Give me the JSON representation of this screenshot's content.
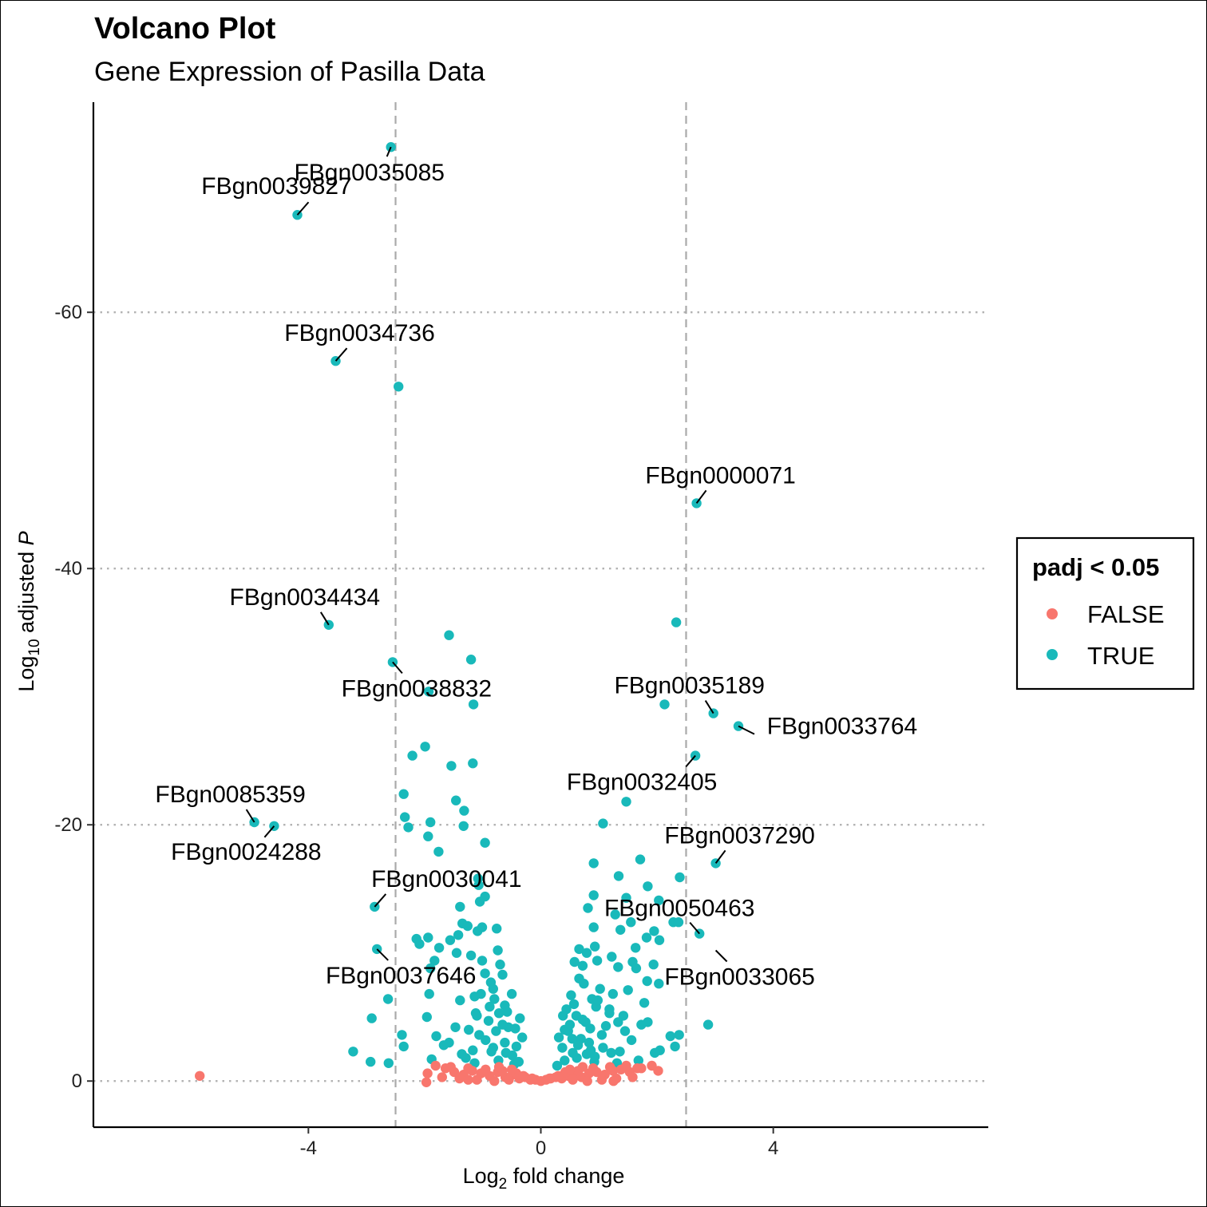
{
  "chart_data": {
    "type": "scatter",
    "title": "Volcano Plot",
    "subtitle": "Gene Expression of Pasilla Data",
    "xlabel": {
      "main": "Log",
      "sub": "2",
      "rest": " fold change"
    },
    "ylabel": {
      "main": "Log",
      "sub": "10",
      "rest": " adjusted ",
      "italic": "P"
    },
    "xlim": [
      -7.7,
      7.7
    ],
    "ylim": [
      3.6,
      -76.4
    ],
    "x_ticks": [
      -4,
      0,
      4
    ],
    "y_ticks": [
      0,
      -20,
      -40,
      -60
    ],
    "x_tick_labels": [
      "-4",
      "0",
      "4"
    ],
    "y_tick_labels": [
      "0",
      "-20",
      "-40",
      "-60"
    ],
    "vlines": [
      -2.5,
      2.5
    ],
    "legend": {
      "title": "padj < 0.05",
      "position": "right",
      "entries": [
        {
          "label": "FALSE",
          "color": "#F8766D"
        },
        {
          "label": "TRUE",
          "color": "#19B9BA"
        }
      ]
    },
    "series": [
      {
        "name": "TRUE",
        "color": "#19B9BA",
        "points": [
          [
            -2.58,
            -72.9
          ],
          [
            -4.19,
            -67.6
          ],
          [
            -3.53,
            -56.2
          ],
          [
            -2.45,
            -54.2
          ],
          [
            2.68,
            -45.1
          ],
          [
            2.33,
            -35.8
          ],
          [
            -3.65,
            -35.6
          ],
          [
            -1.58,
            -34.8
          ],
          [
            -1.2,
            -32.9
          ],
          [
            -2.55,
            -32.7
          ],
          [
            -1.93,
            -30.4
          ],
          [
            -1.16,
            -29.4
          ],
          [
            2.13,
            -29.4
          ],
          [
            2.97,
            -28.7
          ],
          [
            3.4,
            -27.7
          ],
          [
            -1.99,
            -26.1
          ],
          [
            -2.21,
            -25.4
          ],
          [
            2.66,
            -25.4
          ],
          [
            -1.54,
            -24.6
          ],
          [
            -1.17,
            -24.8
          ],
          [
            -2.36,
            -22.4
          ],
          [
            -1.46,
            -21.9
          ],
          [
            1.47,
            -21.8
          ],
          [
            -1.32,
            -21.1
          ],
          [
            -2.34,
            -20.6
          ],
          [
            -1.9,
            -20.2
          ],
          [
            1.07,
            -20.1
          ],
          [
            -4.93,
            -20.2
          ],
          [
            -4.59,
            -19.9
          ],
          [
            -2.28,
            -19.8
          ],
          [
            -1.94,
            -19.1
          ],
          [
            -1.33,
            -19.9
          ],
          [
            -0.96,
            -18.6
          ],
          [
            -1.76,
            -17.9
          ],
          [
            1.71,
            -17.3
          ],
          [
            0.91,
            -17.0
          ],
          [
            3.01,
            -17.0
          ],
          [
            1.34,
            -16.0
          ],
          [
            -1.08,
            -15.8
          ],
          [
            2.39,
            -15.9
          ],
          [
            -1.07,
            -15.3
          ],
          [
            1.84,
            -15.2
          ],
          [
            -0.96,
            -14.4
          ],
          [
            -1.05,
            -14.0
          ],
          [
            0.91,
            -14.5
          ],
          [
            1.47,
            -14.3
          ],
          [
            2.03,
            -14.1
          ],
          [
            -1.39,
            -13.6
          ],
          [
            -2.86,
            -13.6
          ],
          [
            0.81,
            -13.5
          ],
          [
            1.28,
            -13.0
          ],
          [
            2.28,
            -12.4
          ],
          [
            2.37,
            -12.4
          ],
          [
            1.55,
            -12.4
          ],
          [
            -1.35,
            -12.3
          ],
          [
            -1.26,
            -12.1
          ],
          [
            -0.76,
            -11.9
          ],
          [
            0.91,
            -12.0
          ],
          [
            1.37,
            -11.8
          ],
          [
            -1.09,
            -11.7
          ],
          [
            2.73,
            -11.5
          ],
          [
            -1.42,
            -11.4
          ],
          [
            1.95,
            -11.7
          ],
          [
            -1.94,
            -11.2
          ],
          [
            -2.14,
            -11.1
          ],
          [
            1.82,
            -11.2
          ],
          [
            2.04,
            -11.0
          ],
          [
            -2.09,
            -10.7
          ],
          [
            -1.56,
            -11.0
          ],
          [
            -1.75,
            -10.4
          ],
          [
            -2.82,
            -10.3
          ],
          [
            0.66,
            -10.3
          ],
          [
            0.93,
            -10.5
          ],
          [
            1.63,
            -10.4
          ],
          [
            -0.74,
            -10.2
          ],
          [
            -1.45,
            -10.0
          ],
          [
            -1.2,
            -9.8
          ],
          [
            0.79,
            -10.0
          ],
          [
            1.22,
            -9.7
          ],
          [
            -1.83,
            -9.4
          ],
          [
            -1.01,
            -9.4
          ],
          [
            0.97,
            -9.4
          ],
          [
            1.58,
            -9.3
          ],
          [
            1.94,
            -9.1
          ],
          [
            -1.9,
            -8.8
          ],
          [
            0.72,
            -9.0
          ],
          [
            1.33,
            -8.9
          ],
          [
            1.64,
            -8.8
          ],
          [
            -0.96,
            -8.4
          ],
          [
            -0.66,
            -8.3
          ],
          [
            0.66,
            -8.0
          ],
          [
            1.83,
            -7.8
          ],
          [
            2.03,
            -7.6
          ],
          [
            -0.86,
            -7.7
          ],
          [
            1.02,
            -7.2
          ],
          [
            1.5,
            -7.1
          ],
          [
            -1.92,
            -6.8
          ],
          [
            -1.14,
            -6.6
          ],
          [
            -0.8,
            -6.4
          ],
          [
            0.52,
            -6.7
          ],
          [
            0.88,
            -6.4
          ],
          [
            1.24,
            -6.8
          ],
          [
            -2.63,
            -6.4
          ],
          [
            -1.39,
            -6.3
          ],
          [
            0.57,
            -6.0
          ],
          [
            1.78,
            -6.1
          ],
          [
            -0.62,
            -5.9
          ],
          [
            0.44,
            -5.6
          ],
          [
            0.95,
            -5.8
          ],
          [
            1.18,
            -5.6
          ],
          [
            -0.72,
            -5.3
          ],
          [
            -1.12,
            -5.3
          ],
          [
            0.38,
            -5.1
          ],
          [
            1.42,
            -5.1
          ],
          [
            -2.91,
            -4.9
          ],
          [
            -1.96,
            -5.0
          ],
          [
            -0.36,
            -4.9
          ],
          [
            0.77,
            -4.6
          ],
          [
            -0.9,
            -4.7
          ],
          [
            1.33,
            -4.6
          ],
          [
            2.88,
            -4.4
          ],
          [
            -1.47,
            -4.2
          ],
          [
            -0.56,
            -4.2
          ],
          [
            0.41,
            -4.0
          ],
          [
            0.85,
            -4.1
          ],
          [
            1.73,
            -4.4
          ],
          [
            1.84,
            -4.6
          ],
          [
            -2.39,
            -3.6
          ],
          [
            -1.8,
            -3.5
          ],
          [
            -1.06,
            -3.6
          ],
          [
            0.31,
            -3.4
          ],
          [
            0.69,
            -3.3
          ],
          [
            1.56,
            -3.2
          ],
          [
            2.38,
            -3.6
          ],
          [
            2.23,
            -3.5
          ],
          [
            -1.67,
            -2.8
          ],
          [
            -0.82,
            -2.6
          ],
          [
            -0.42,
            -2.7
          ],
          [
            0.37,
            -2.6
          ],
          [
            1.07,
            -2.6
          ],
          [
            2.31,
            -2.7
          ],
          [
            -3.23,
            -2.3
          ],
          [
            -2.36,
            -2.7
          ],
          [
            -1.36,
            -2.1
          ],
          [
            -0.6,
            -2.2
          ],
          [
            0.55,
            -2.2
          ],
          [
            1.36,
            -2.3
          ],
          [
            2.05,
            -2.4
          ],
          [
            1.96,
            -2.2
          ],
          [
            -2.93,
            -1.5
          ],
          [
            -2.62,
            -1.4
          ],
          [
            -1.88,
            -1.7
          ],
          [
            -1.14,
            -1.4
          ],
          [
            -0.46,
            -1.3
          ],
          [
            0.28,
            -1.2
          ],
          [
            0.92,
            -1.5
          ],
          [
            1.68,
            -1.6
          ],
          [
            -1.01,
            -12.0
          ],
          [
            -0.7,
            -9.1
          ],
          [
            0.58,
            -9.3
          ],
          [
            -0.82,
            -7.2
          ],
          [
            0.74,
            -7.6
          ],
          [
            -0.5,
            -6.8
          ],
          [
            0.61,
            -5.1
          ],
          [
            -0.32,
            -3.4
          ],
          [
            0.47,
            -3.9
          ],
          [
            -0.88,
            -5.8
          ],
          [
            1.12,
            -4.3
          ],
          [
            -0.66,
            -4.4
          ],
          [
            0.83,
            -3.0
          ],
          [
            -1.24,
            -4.0
          ],
          [
            1.45,
            -3.9
          ],
          [
            -0.49,
            -2.0
          ],
          [
            0.62,
            -1.8
          ],
          [
            -0.73,
            -1.6
          ],
          [
            0.79,
            -2.1
          ],
          [
            -1.58,
            -3.0
          ],
          [
            1.21,
            -2.2
          ],
          [
            -1.17,
            -2.4
          ],
          [
            0.98,
            -6.3
          ],
          [
            -1.03,
            -6.8
          ],
          [
            0.72,
            -4.8
          ],
          [
            -0.58,
            -5.4
          ],
          [
            0.5,
            -4.4
          ],
          [
            -0.77,
            -3.9
          ],
          [
            1.05,
            -3.6
          ],
          [
            -0.95,
            -3.2
          ],
          [
            0.86,
            -2.4
          ],
          [
            -1.29,
            -1.8
          ],
          [
            1.31,
            -1.4
          ],
          [
            -0.38,
            -1.5
          ],
          [
            0.41,
            -1.6
          ],
          [
            -0.62,
            -3.0
          ],
          [
            0.64,
            -2.8
          ],
          [
            -0.85,
            -2.3
          ],
          [
            0.93,
            -1.9
          ],
          [
            -1.1,
            -5.1
          ],
          [
            1.18,
            -5.3
          ],
          [
            -0.44,
            -4.1
          ],
          [
            0.54,
            -3.3
          ]
        ]
      },
      {
        "name": "FALSE",
        "color": "#F8766D",
        "points": [
          [
            -5.87,
            -0.4
          ],
          [
            -1.97,
            0.1
          ],
          [
            1.91,
            -1.2
          ],
          [
            1.73,
            -1.0
          ],
          [
            -1.64,
            -1.0
          ],
          [
            -1.49,
            -0.7
          ],
          [
            -1.33,
            -0.5
          ],
          [
            -1.18,
            -0.8
          ],
          [
            -1.03,
            -0.6
          ],
          [
            -0.88,
            -0.4
          ],
          [
            -0.74,
            -0.7
          ],
          [
            -0.61,
            -0.3
          ],
          [
            -0.49,
            -0.5
          ],
          [
            -0.37,
            -0.2
          ],
          [
            -0.27,
            -0.3
          ],
          [
            -0.18,
            -0.1
          ],
          [
            -0.09,
            -0.1
          ],
          [
            0.0,
            0.0
          ],
          [
            0.09,
            -0.1
          ],
          [
            0.17,
            -0.2
          ],
          [
            0.26,
            -0.3
          ],
          [
            0.36,
            -0.2
          ],
          [
            0.47,
            -0.4
          ],
          [
            0.58,
            -0.5
          ],
          [
            0.7,
            -0.3
          ],
          [
            0.83,
            -0.6
          ],
          [
            0.96,
            -0.7
          ],
          [
            1.1,
            -0.5
          ],
          [
            1.24,
            -0.8
          ],
          [
            1.38,
            -0.9
          ],
          [
            1.53,
            -0.7
          ],
          [
            1.66,
            -1.0
          ],
          [
            -1.81,
            -1.2
          ],
          [
            -1.55,
            -1.1
          ],
          [
            -1.25,
            -1.0
          ],
          [
            -0.95,
            -0.9
          ],
          [
            -0.66,
            -0.8
          ],
          [
            -0.42,
            -0.6
          ],
          [
            0.42,
            -0.7
          ],
          [
            0.64,
            -0.8
          ],
          [
            0.9,
            -1.0
          ],
          [
            1.19,
            -1.1
          ],
          [
            1.47,
            -1.2
          ],
          [
            -1.7,
            -0.3
          ],
          [
            -1.4,
            -0.2
          ],
          [
            -1.1,
            -0.1
          ],
          [
            -0.8,
            0.0
          ],
          [
            -0.55,
            -0.1
          ],
          [
            0.55,
            -0.1
          ],
          [
            0.8,
            0.0
          ],
          [
            1.05,
            -0.1
          ],
          [
            1.3,
            -0.2
          ],
          [
            1.58,
            -0.3
          ],
          [
            -1.95,
            -0.6
          ],
          [
            2.02,
            -0.8
          ],
          [
            1.25,
            0.0
          ],
          [
            -1.25,
            -0.1
          ],
          [
            -0.3,
            -0.4
          ],
          [
            0.3,
            -0.4
          ],
          [
            -0.15,
            -0.2
          ],
          [
            0.15,
            -0.2
          ],
          [
            0.72,
            -1.1
          ],
          [
            -0.72,
            -1.1
          ],
          [
            0.5,
            -0.9
          ],
          [
            -0.5,
            -0.9
          ]
        ]
      }
    ],
    "annotations": [
      {
        "label": "FBgn0035085",
        "x": -2.58,
        "y": -72.9
      },
      {
        "label": "FBgn0039827",
        "x": -4.19,
        "y": -67.6
      },
      {
        "label": "FBgn0034736",
        "x": -3.53,
        "y": -56.2
      },
      {
        "label": "FBgn0000071",
        "x": 2.68,
        "y": -45.1
      },
      {
        "label": "FBgn0034434",
        "x": -3.65,
        "y": -35.6
      },
      {
        "label": "FBgn0038832",
        "x": -2.55,
        "y": -32.7
      },
      {
        "label": "FBgn0035189",
        "x": 2.97,
        "y": -28.7
      },
      {
        "label": "FBgn0033764",
        "x": 3.4,
        "y": -27.7
      },
      {
        "label": "FBgn0032405",
        "x": 2.66,
        "y": -25.4
      },
      {
        "label": "FBgn0085359",
        "x": -4.93,
        "y": -20.2
      },
      {
        "label": "FBgn0024288",
        "x": -4.59,
        "y": -19.9
      },
      {
        "label": "FBgn0037290",
        "x": 3.01,
        "y": -17.0
      },
      {
        "label": "FBgn0030041",
        "x": -2.86,
        "y": -13.6
      },
      {
        "label": "FBgn0050463",
        "x": 2.73,
        "y": -11.5
      },
      {
        "label": "FBgn0037646",
        "x": -2.82,
        "y": -10.3
      },
      {
        "label": "FBgn0033065",
        "x": 3.01,
        "y": -10.2
      }
    ]
  }
}
